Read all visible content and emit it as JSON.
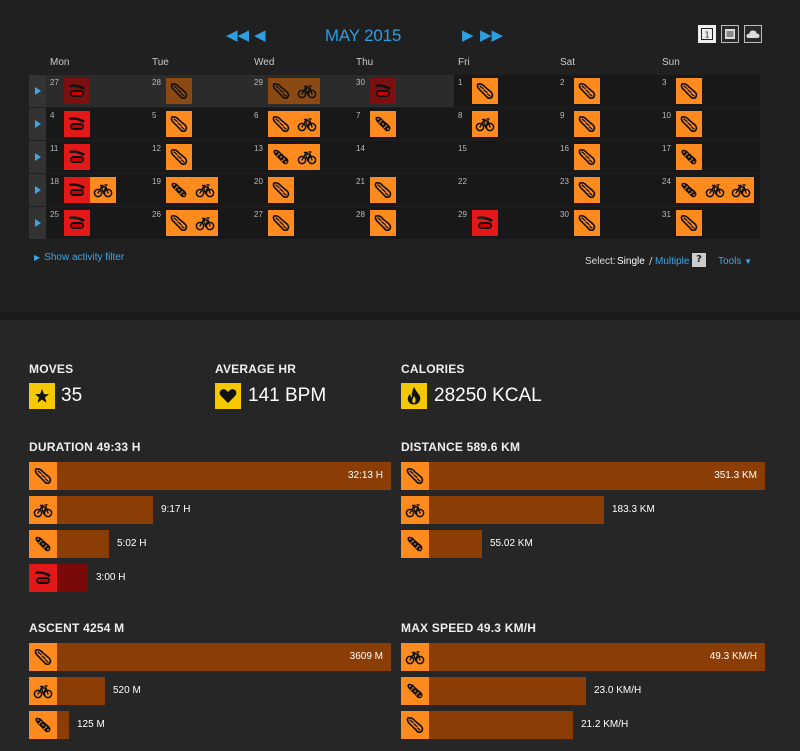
{
  "calendar": {
    "month_title": "MAY 2015",
    "days": [
      "Mon",
      "Tue",
      "Wed",
      "Thu",
      "Fri",
      "Sat",
      "Sun"
    ],
    "weeks": [
      [
        {
          "d": "27",
          "other": true,
          "acts": [
            {
              "t": "other",
              "f": true
            }
          ]
        },
        {
          "d": "28",
          "other": true,
          "acts": [
            {
              "t": "run",
              "f": true
            }
          ]
        },
        {
          "d": "29",
          "other": true,
          "acts": [
            {
              "t": "run",
              "f": true
            },
            {
              "t": "bike",
              "f": true
            }
          ]
        },
        {
          "d": "30",
          "other": true,
          "acts": [
            {
              "t": "other",
              "f": true
            }
          ]
        },
        {
          "d": "1",
          "acts": [
            {
              "t": "run"
            }
          ]
        },
        {
          "d": "2",
          "acts": [
            {
              "t": "run"
            }
          ]
        },
        {
          "d": "3",
          "acts": [
            {
              "t": "run"
            }
          ]
        }
      ],
      [
        {
          "d": "4",
          "acts": [
            {
              "t": "other"
            }
          ]
        },
        {
          "d": "5",
          "acts": [
            {
              "t": "run"
            }
          ]
        },
        {
          "d": "6",
          "acts": [
            {
              "t": "run"
            },
            {
              "t": "bike"
            }
          ]
        },
        {
          "d": "7",
          "acts": [
            {
              "t": "trail"
            }
          ]
        },
        {
          "d": "8",
          "acts": [
            {
              "t": "bike"
            }
          ]
        },
        {
          "d": "9",
          "acts": [
            {
              "t": "run"
            }
          ]
        },
        {
          "d": "10",
          "acts": [
            {
              "t": "run"
            }
          ]
        }
      ],
      [
        {
          "d": "11",
          "acts": [
            {
              "t": "other"
            }
          ]
        },
        {
          "d": "12",
          "acts": [
            {
              "t": "run"
            }
          ]
        },
        {
          "d": "13",
          "acts": [
            {
              "t": "trail"
            },
            {
              "t": "bike"
            }
          ]
        },
        {
          "d": "14",
          "acts": []
        },
        {
          "d": "15",
          "acts": []
        },
        {
          "d": "16",
          "acts": [
            {
              "t": "run"
            }
          ]
        },
        {
          "d": "17",
          "acts": [
            {
              "t": "trail"
            }
          ]
        }
      ],
      [
        {
          "d": "18",
          "acts": [
            {
              "t": "other"
            },
            {
              "t": "bike"
            }
          ]
        },
        {
          "d": "19",
          "acts": [
            {
              "t": "trail"
            },
            {
              "t": "bike"
            }
          ]
        },
        {
          "d": "20",
          "acts": [
            {
              "t": "run"
            }
          ]
        },
        {
          "d": "21",
          "acts": [
            {
              "t": "run"
            }
          ]
        },
        {
          "d": "22",
          "acts": []
        },
        {
          "d": "23",
          "acts": [
            {
              "t": "run"
            }
          ]
        },
        {
          "d": "24",
          "acts": [
            {
              "t": "trail"
            },
            {
              "t": "bike"
            },
            {
              "t": "bike"
            }
          ]
        }
      ],
      [
        {
          "d": "25",
          "acts": [
            {
              "t": "other"
            }
          ]
        },
        {
          "d": "26",
          "acts": [
            {
              "t": "run"
            },
            {
              "t": "bike"
            }
          ]
        },
        {
          "d": "27",
          "acts": [
            {
              "t": "run"
            }
          ]
        },
        {
          "d": "28",
          "acts": [
            {
              "t": "run"
            }
          ]
        },
        {
          "d": "29",
          "acts": [
            {
              "t": "other"
            }
          ]
        },
        {
          "d": "30",
          "acts": [
            {
              "t": "run"
            }
          ]
        },
        {
          "d": "31",
          "acts": [
            {
              "t": "run"
            }
          ]
        }
      ]
    ],
    "filter_link": "Show activity filter",
    "select_label": "Select:",
    "select_single": "Single",
    "select_separator": "/",
    "select_multiple": "Multiple",
    "help": "?",
    "tools": "Tools"
  },
  "summary": {
    "moves_label": "MOVES",
    "moves_value": "35",
    "hr_label": "AVERAGE HR",
    "hr_value": "141 BPM",
    "cal_label": "CALORIES",
    "cal_value": "28250 KCAL"
  },
  "sections": {
    "duration": {
      "title": "DURATION 49:33 H",
      "rows": [
        {
          "type": "run",
          "label": "32:13 H",
          "fraction": 1.0
        },
        {
          "type": "bike",
          "label": "9:17 H",
          "fraction": 0.288
        },
        {
          "type": "trail",
          "label": "5:02 H",
          "fraction": 0.156
        },
        {
          "type": "other",
          "label": "3:00 H",
          "fraction": 0.093
        }
      ]
    },
    "distance": {
      "title": "DISTANCE 589.6 KM",
      "rows": [
        {
          "type": "run",
          "label": "351.3 KM",
          "fraction": 1.0
        },
        {
          "type": "bike",
          "label": "183.3 KM",
          "fraction": 0.522
        },
        {
          "type": "trail",
          "label": "55.02 KM",
          "fraction": 0.157
        }
      ]
    },
    "ascent": {
      "title": "ASCENT 4254 M",
      "rows": [
        {
          "type": "run",
          "label": "3609 M",
          "fraction": 1.0
        },
        {
          "type": "bike",
          "label": "520 M",
          "fraction": 0.144
        },
        {
          "type": "trail",
          "label": "125 M",
          "fraction": 0.035
        }
      ]
    },
    "maxspeed": {
      "title": "MAX SPEED 49.3 KM/H",
      "rows": [
        {
          "type": "bike",
          "label": "49.3 KM/H",
          "fraction": 1.0
        },
        {
          "type": "trail",
          "label": "23.0 KM/H",
          "fraction": 0.467
        },
        {
          "type": "run",
          "label": "21.2 KM/H",
          "fraction": 0.43
        }
      ]
    }
  },
  "icons": {
    "run": "running-shoe-icon",
    "trail": "trail-shoe-icon",
    "bike": "bicycle-icon",
    "other": "treadmill-icon"
  }
}
